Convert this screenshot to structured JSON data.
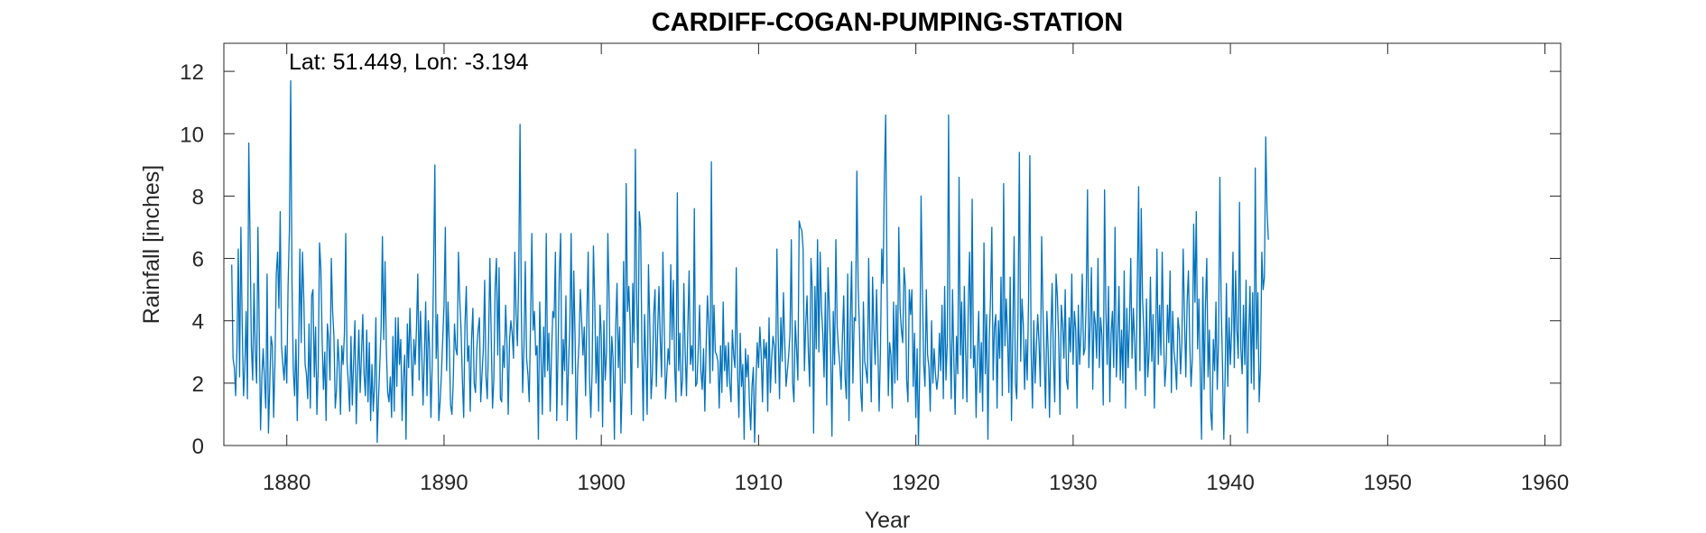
{
  "chart_data": {
    "type": "line",
    "title": "CARDIFF-COGAN-PUMPING-STATION",
    "xlabel": "Year",
    "ylabel": "Rainfall [inches]",
    "annotation": "Lat: 51.449, Lon: -3.194",
    "xlim": [
      1876,
      1961
    ],
    "ylim": [
      0,
      12.9
    ],
    "xticks": [
      1880,
      1890,
      1900,
      1910,
      1920,
      1930,
      1940,
      1950,
      1960
    ],
    "yticks": [
      0,
      2,
      4,
      6,
      8,
      10,
      12
    ],
    "grid": false,
    "series_color": "#0072BD",
    "series": [
      {
        "x_start": 1876.5,
        "x_step": 0.08333,
        "values": [
          5.8,
          2.8,
          2.5,
          1.6,
          3.1,
          6.3,
          2.2,
          7.0,
          3.9,
          1.6,
          2.5,
          4.3,
          1.5,
          9.7,
          6.6,
          3.2,
          2.1,
          5.2,
          3.0,
          2.0,
          7.0,
          3.7,
          0.5,
          2.2,
          3.1,
          2.1,
          1.2,
          5.5,
          0.4,
          1.9,
          3.5,
          3.2,
          0.9,
          2.7,
          5.5,
          6.2,
          4.4,
          7.5,
          3.2,
          2.6,
          2.1,
          3.2,
          2.0,
          5.1,
          6.9,
          11.7,
          5.2,
          2.4,
          1.6,
          3.4,
          0.8,
          3.0,
          6.3,
          3.3,
          6.2,
          4.7,
          2.6,
          2.3,
          1.5,
          3.9,
          1.2,
          4.8,
          5.0,
          2.2,
          3.8,
          1.0,
          2.5,
          6.5,
          5.7,
          3.4,
          1.8,
          3.0,
          0.8,
          3.9,
          3.4,
          2.1,
          6.0,
          4.3,
          3.5,
          1.2,
          1.8,
          3.4,
          2.6,
          1.0,
          3.2,
          2.6,
          3.6,
          6.8,
          2.7,
          2.0,
          1.1,
          3.5,
          1.3,
          2.7,
          4.0,
          0.7,
          2.3,
          3.7,
          1.7,
          2.9,
          4.2,
          2.3,
          1.6,
          3.7,
          1.4,
          3.3,
          0.8,
          2.6,
          1.1,
          2.0,
          4.1,
          0.1,
          1.5,
          2.6,
          3.8,
          6.7,
          3.4,
          5.9,
          3.1,
          1.7,
          1.4,
          2.2,
          0.9,
          3.5,
          1.1,
          4.1,
          1.9,
          4.1,
          2.6,
          3.4,
          0.8,
          2.2,
          2.9,
          0.2,
          3.9,
          2.5,
          4.4,
          2.9,
          1.6,
          3.4,
          2.6,
          3.8,
          5.5,
          2.1,
          4.3,
          3.0,
          1.3,
          2.9,
          4.6,
          1.6,
          4.0,
          3.1,
          0.9,
          2.6,
          5.6,
          9.0,
          2.8,
          4.2,
          0.8,
          1.4,
          2.3,
          3.4,
          4.5,
          7.0,
          2.4,
          4.6,
          3.3,
          1.3,
          1.0,
          2.0,
          3.9,
          3.1,
          2.9,
          6.2,
          4.7,
          3.7,
          2.1,
          0.9,
          3.9,
          5.1,
          2.7,
          3.2,
          1.1,
          3.4,
          4.4,
          2.0,
          1.7,
          3.1,
          3.7,
          4.1,
          1.4,
          2.3,
          3.1,
          5.3,
          2.2,
          1.5,
          3.4,
          6.0,
          3.5,
          1.2,
          2.1,
          5.1,
          6.0,
          2.9,
          5.7,
          1.5,
          1.4,
          3.2,
          2.5,
          4.5,
          3.3,
          1.0,
          3.4,
          4.0,
          3.6,
          2.8,
          6.2,
          4.2,
          3.2,
          5.5,
          10.3,
          4.3,
          1.7,
          3.2,
          5.9,
          2.8,
          2.3,
          1.4,
          3.9,
          6.8,
          3.7,
          4.3,
          2.9,
          3.2,
          0.2,
          4.6,
          2.9,
          1.0,
          3.8,
          2.2,
          6.8,
          2.4,
          3.6,
          1.1,
          2.9,
          4.3,
          4.1,
          6.2,
          0.8,
          3.1,
          5.6,
          6.8,
          1.3,
          3.4,
          2.4,
          4.8,
          0.8,
          2.6,
          3.8,
          6.8,
          2.3,
          5.6,
          3.5,
          0.2,
          2.4,
          3.3,
          5.0,
          4.0,
          2.9,
          3.8,
          1.6,
          4.2,
          6.2,
          2.2,
          0.9,
          2.4,
          6.4,
          4.6,
          2.0,
          3.5,
          1.1,
          4.5,
          3.5,
          0.6,
          4.0,
          2.1,
          3.0,
          6.8,
          4.7,
          1.4,
          3.5,
          2.8,
          0.2,
          3.8,
          5.2,
          2.5,
          3.8,
          0.4,
          2.0,
          5.9,
          2.0,
          8.4,
          4.3,
          5.1,
          3.9,
          1.0,
          5.2,
          3.3,
          9.5,
          4.7,
          2.5,
          7.5,
          7.0,
          3.1,
          0.8,
          4.2,
          2.7,
          1.0,
          5.8,
          3.9,
          1.5,
          2.3,
          4.2,
          5.0,
          1.9,
          3.7,
          5.1,
          3.4,
          2.2,
          6.2,
          3.9,
          1.5,
          2.3,
          3.1,
          2.6,
          5.8,
          3.4,
          5.3,
          2.5,
          1.4,
          8.1,
          2.4,
          3.6,
          1.6,
          2.1,
          5.2,
          3.0,
          1.6,
          3.7,
          5.6,
          2.6,
          3.2,
          2.4,
          7.6,
          1.9,
          2.0,
          3.1,
          4.5,
          2.4,
          1.8,
          3.1,
          1.1,
          3.2,
          4.8,
          3.8,
          2.0,
          9.1,
          2.4,
          4.5,
          3.0,
          2.9,
          2.7,
          1.2,
          3.2,
          1.7,
          4.6,
          2.4,
          3.2,
          1.9,
          3.3,
          2.0,
          1.4,
          3.7,
          2.9,
          2.5,
          5.7,
          2.3,
          0.9,
          3.6,
          1.9,
          2.6,
          0.2,
          3.1,
          2.2,
          2.9,
          1.4,
          0.5,
          1.9,
          2.5,
          0.1,
          2.0,
          3.3,
          2.5,
          3.8,
          2.9,
          1.4,
          3.4,
          2.8,
          3.3,
          1.1,
          4.1,
          1.7,
          2.8,
          3.5,
          3.2,
          2.0,
          6.3,
          3.5,
          1.5,
          4.1,
          2.7,
          4.9,
          3.3,
          1.9,
          2.4,
          2.9,
          3.6,
          6.6,
          2.0,
          1.4,
          4.0,
          3.1,
          2.1,
          7.2,
          7.0,
          6.9,
          6.3,
          2.4,
          3.9,
          4.8,
          3.0,
          1.9,
          6.0,
          5.0,
          0.4,
          5.1,
          3.1,
          6.6,
          3.0,
          6.2,
          4.4,
          3.6,
          2.2,
          4.9,
          1.3,
          5.7,
          4.4,
          3.0,
          0.3,
          4.3,
          2.6,
          6.6,
          3.8,
          3.1,
          2.6,
          1.8,
          3.5,
          4.8,
          2.2,
          1.5,
          5.5,
          0.8,
          4.0,
          5.9,
          2.0,
          4.1,
          4.0,
          8.8,
          5.1,
          3.7,
          1.7,
          1.1,
          4.6,
          2.7,
          2.4,
          2.0,
          6.0,
          3.3,
          1.4,
          5.4,
          3.7,
          2.6,
          5.0,
          3.2,
          1.1,
          3.0,
          6.3,
          5.2,
          8.6,
          10.6,
          5.4,
          1.6,
          3.3,
          2.9,
          1.2,
          4.6,
          2.0,
          4.5,
          2.1,
          7.0,
          4.4,
          3.7,
          3.3,
          5.7,
          5.1,
          2.1,
          1.4,
          5.0,
          4.2,
          5.0,
          1.9,
          3.6,
          0.9,
          3.1,
          0.0,
          2.5,
          8.0,
          5.1,
          2.6,
          1.9,
          5.0,
          2.9,
          2.5,
          1.1,
          4.0,
          2.0,
          3.1,
          2.3,
          1.8,
          2.2,
          3.6,
          2.4,
          4.5,
          1.5,
          5.1,
          2.1,
          3.3,
          10.6,
          3.5,
          1.5,
          5.0,
          2.8,
          1.0,
          3.5,
          2.3,
          8.6,
          2.9,
          4.6,
          1.5,
          5.1,
          3.0,
          1.4,
          4.4,
          6.2,
          2.8,
          7.9,
          2.5,
          3.2,
          0.9,
          3.0,
          4.3,
          1.7,
          3.3,
          1.1,
          6.5,
          2.3,
          4.2,
          0.2,
          3.4,
          4.7,
          7.0,
          2.1,
          3.8,
          4.2,
          1.2,
          4.0,
          2.8,
          5.4,
          1.6,
          8.4,
          3.2,
          4.7,
          3.5,
          1.7,
          5.4,
          0.8,
          3.6,
          6.7,
          2.0,
          1.5,
          4.3,
          9.4,
          2.7,
          4.7,
          3.9,
          1.8,
          3.4,
          2.1,
          4.6,
          9.3,
          3.0,
          1.2,
          4.0,
          2.0,
          3.2,
          4.2,
          3.3,
          1.9,
          6.7,
          4.4,
          2.7,
          1.2,
          4.3,
          3.0,
          0.9,
          3.5,
          5.2,
          2.8,
          1.4,
          5.5,
          4.8,
          3.4,
          1.0,
          4.5,
          3.9,
          2.8,
          5.0,
          2.1,
          1.8,
          4.1,
          3.0,
          5.5,
          2.6,
          4.3,
          3.7,
          1.2,
          4.5,
          2.6,
          3.6,
          5.5,
          2.9,
          3.1,
          4.6,
          8.2,
          2.5,
          3.9,
          5.7,
          1.8,
          4.3,
          3.9,
          2.8,
          6.0,
          2.5,
          4.1,
          3.5,
          1.3,
          8.2,
          4.4,
          2.6,
          5.1,
          1.4,
          3.6,
          4.3,
          2.5,
          7.0,
          2.2,
          3.4,
          5.1,
          2.1,
          3.7,
          2.0,
          5.6,
          1.2,
          4.4,
          2.5,
          3.9,
          6.0,
          2.8,
          4.4,
          3.3,
          1.8,
          5.3,
          8.3,
          2.4,
          7.6,
          4.7,
          3.7,
          1.6,
          4.7,
          2.2,
          3.0,
          5.4,
          2.7,
          4.2,
          1.2,
          3.4,
          6.3,
          2.6,
          4.5,
          2.9,
          6.2,
          3.6,
          1.9,
          2.6,
          4.5,
          3.3,
          5.6,
          1.7,
          4.3,
          3.0,
          2.6,
          1.8,
          4.1,
          3.7,
          2.3,
          3.3,
          6.3,
          4.1,
          2.2,
          4.6,
          5.6,
          3.3,
          1.9,
          2.8,
          7.1,
          4.6,
          7.5,
          3.1,
          4.7,
          2.4,
          0.2,
          5.4,
          1.8,
          4.5,
          6.0,
          2.2,
          3.7,
          1.1,
          0.5,
          3.4,
          2.4,
          4.6,
          1.8,
          3.4,
          8.6,
          4.5,
          2.6,
          0.2,
          2.2,
          5.2,
          1.9,
          4.1,
          2.6,
          3.7,
          6.2,
          2.5,
          5.6,
          3.7,
          2.8,
          7.8,
          3.1,
          2.3,
          4.5,
          2.6,
          5.3,
          0.4,
          3.6,
          5.1,
          2.0,
          4.9,
          1.8,
          8.9,
          3.1,
          4.9,
          1.4,
          2.5,
          6.2,
          5.0,
          5.4,
          9.9,
          7.5,
          6.6
        ]
      }
    ]
  }
}
